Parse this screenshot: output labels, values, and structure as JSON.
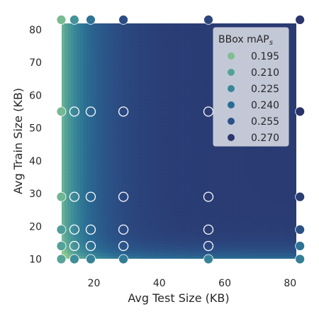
{
  "chart_data": {
    "type": "scatter",
    "xlabel": "Avg Test Size (KB)",
    "ylabel": "Avg Train Size (KB)",
    "xlim": [
      6,
      86
    ],
    "ylim": [
      6,
      86
    ],
    "xticks": [
      20,
      40,
      60,
      80
    ],
    "yticks": [
      10,
      20,
      30,
      40,
      50,
      60,
      70,
      80
    ],
    "grid": false,
    "legend": {
      "title_main": "BBox mAP",
      "title_sub": "s",
      "placement": "top-right",
      "entries": [
        {
          "label": "0.195",
          "value": 0.195
        },
        {
          "label": "0.210",
          "value": 0.21
        },
        {
          "label": "0.225",
          "value": 0.225
        },
        {
          "label": "0.240",
          "value": 0.24
        },
        {
          "label": "0.255",
          "value": 0.255
        },
        {
          "label": "0.270",
          "value": 0.27
        }
      ]
    },
    "colormap": [
      "#8ec88e",
      "#5aa697",
      "#3a8a9a",
      "#2a6b93",
      "#2b4e85",
      "#2a2e66"
    ],
    "value_range": [
      0.19,
      0.274
    ],
    "background_field": {
      "description": "interpolated surface",
      "x_min": 10,
      "x_max": 83,
      "y_min": 10,
      "y_max": 83
    },
    "points": [
      {
        "x": 10,
        "y": 10,
        "value": 0.208
      },
      {
        "x": 14,
        "y": 10,
        "value": 0.222
      },
      {
        "x": 19,
        "y": 10,
        "value": 0.228
      },
      {
        "x": 29,
        "y": 10,
        "value": 0.232
      },
      {
        "x": 55,
        "y": 10,
        "value": 0.228
      },
      {
        "x": 83,
        "y": 10,
        "value": 0.23
      },
      {
        "x": 10,
        "y": 14,
        "value": 0.21
      },
      {
        "x": 14,
        "y": 14,
        "value": null
      },
      {
        "x": 19,
        "y": 14,
        "value": null
      },
      {
        "x": 29,
        "y": 14,
        "value": null
      },
      {
        "x": 55,
        "y": 14,
        "value": null
      },
      {
        "x": 83,
        "y": 14,
        "value": 0.236
      },
      {
        "x": 10,
        "y": 19,
        "value": 0.212
      },
      {
        "x": 14,
        "y": 19,
        "value": null
      },
      {
        "x": 19,
        "y": 19,
        "value": null
      },
      {
        "x": 29,
        "y": 19,
        "value": null
      },
      {
        "x": 55,
        "y": 19,
        "value": null
      },
      {
        "x": 83,
        "y": 19,
        "value": 0.256
      },
      {
        "x": 10,
        "y": 29,
        "value": 0.2
      },
      {
        "x": 14,
        "y": 29,
        "value": null
      },
      {
        "x": 19,
        "y": 29,
        "value": null
      },
      {
        "x": 29,
        "y": 29,
        "value": null
      },
      {
        "x": 55,
        "y": 29,
        "value": null
      },
      {
        "x": 83,
        "y": 29,
        "value": 0.266
      },
      {
        "x": 10,
        "y": 55,
        "value": 0.198
      },
      {
        "x": 14,
        "y": 55,
        "value": null
      },
      {
        "x": 19,
        "y": 55,
        "value": null
      },
      {
        "x": 29,
        "y": 55,
        "value": null
      },
      {
        "x": 55,
        "y": 55,
        "value": null
      },
      {
        "x": 83,
        "y": 55,
        "value": 0.272
      },
      {
        "x": 10,
        "y": 83,
        "value": 0.197
      },
      {
        "x": 14,
        "y": 83,
        "value": 0.218
      },
      {
        "x": 19,
        "y": 83,
        "value": 0.236
      },
      {
        "x": 29,
        "y": 83,
        "value": 0.258
      },
      {
        "x": 55,
        "y": 83,
        "value": 0.262
      },
      {
        "x": 83,
        "y": 83,
        "value": 0.27
      }
    ]
  }
}
